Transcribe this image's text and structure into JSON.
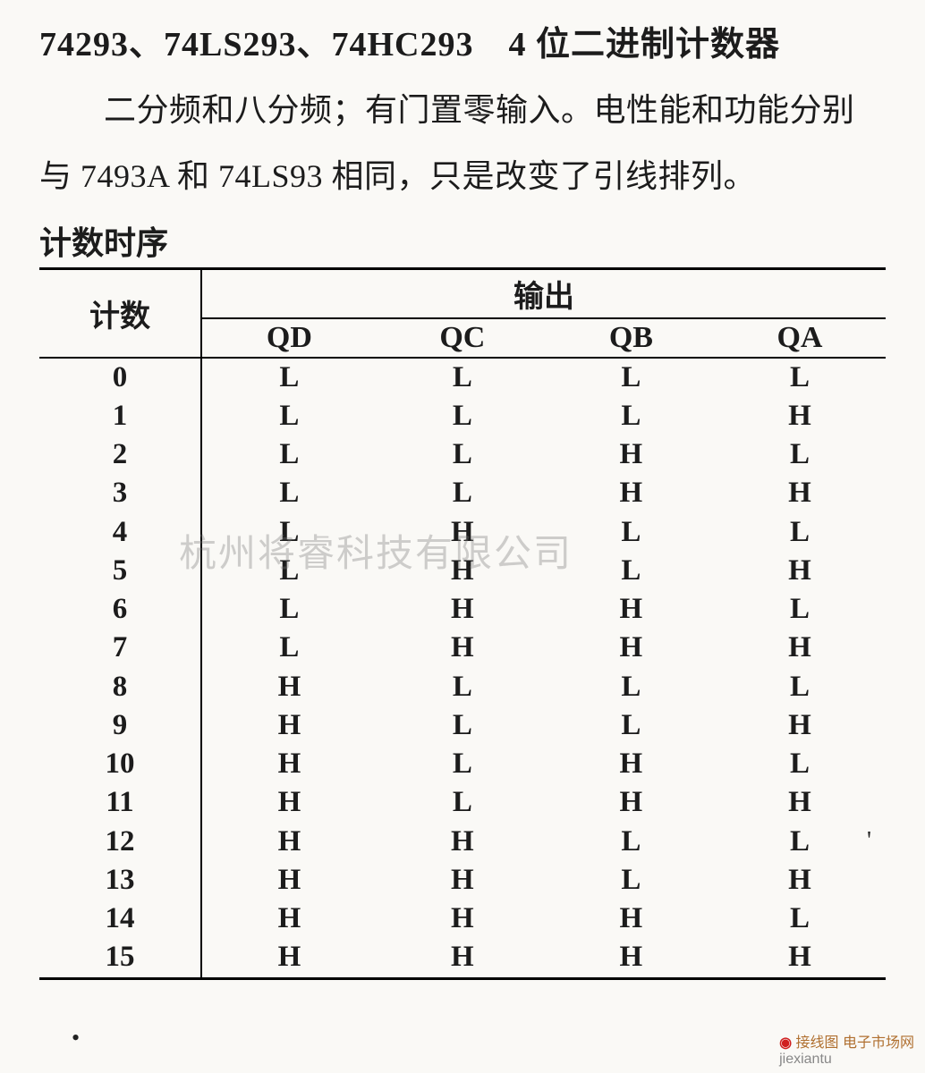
{
  "heading": "74293、74LS293、74HC293　4 位二进制计数器",
  "paragraph": "二分频和八分频；有门置零输入。电性能和功能分别与 7493A 和 74LS93 相同，只是改变了引线排列。",
  "subheading": "计数时序",
  "table": {
    "type": "table",
    "count_header": "计数",
    "output_header": "输出",
    "columns": [
      "QD",
      "QC",
      "QB",
      "QA"
    ],
    "rows": [
      [
        "0",
        "L",
        "L",
        "L",
        "L"
      ],
      [
        "1",
        "L",
        "L",
        "L",
        "H"
      ],
      [
        "2",
        "L",
        "L",
        "H",
        "L"
      ],
      [
        "3",
        "L",
        "L",
        "H",
        "H"
      ],
      [
        "4",
        "L",
        "H",
        "L",
        "L"
      ],
      [
        "5",
        "L",
        "H",
        "L",
        "H"
      ],
      [
        "6",
        "L",
        "H",
        "H",
        "L"
      ],
      [
        "7",
        "L",
        "H",
        "H",
        "H"
      ],
      [
        "8",
        "H",
        "L",
        "L",
        "L"
      ],
      [
        "9",
        "H",
        "L",
        "L",
        "H"
      ],
      [
        "10",
        "H",
        "L",
        "H",
        "L"
      ],
      [
        "11",
        "H",
        "L",
        "H",
        "H"
      ],
      [
        "12",
        "H",
        "H",
        "L",
        "L"
      ],
      [
        "13",
        "H",
        "H",
        "L",
        "H"
      ],
      [
        "14",
        "H",
        "H",
        "H",
        "L"
      ],
      [
        "15",
        "H",
        "H",
        "H",
        "H"
      ]
    ],
    "header_fontsize": 34,
    "cell_fontsize": 33,
    "border_color": "#000000",
    "background_color": "#faf9f6",
    "text_color": "#1c1c1c"
  },
  "watermark1": "杭州将睿科技有限公司",
  "corner": {
    "label1": "接线图",
    "label2": "jiexiantu",
    "label3": "电子市场网"
  }
}
